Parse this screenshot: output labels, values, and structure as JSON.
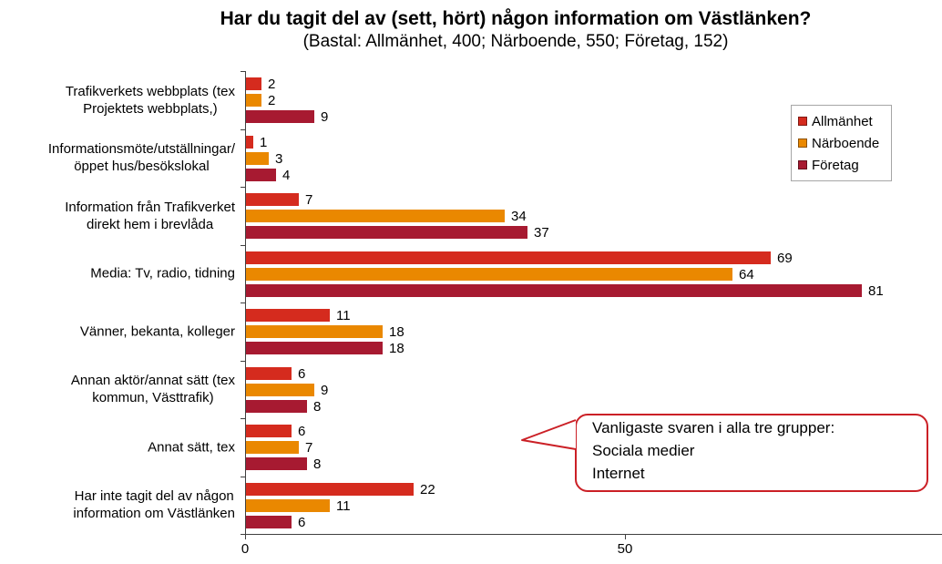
{
  "chart_data": {
    "type": "bar",
    "orientation": "horizontal",
    "title": "Har du tagit del av (sett, hört) någon information om Västlänken?",
    "subtitle": "(Bastal: Allmänhet, 400; Närboende, 550; Företag, 152)",
    "categories": [
      [
        "Trafikverkets webbplats (tex",
        "Projektets webbplats,)"
      ],
      [
        "Informationsmöte/utställningar/",
        "öppet hus/besökslokal"
      ],
      [
        "Information från Trafikverket",
        "direkt hem i brevlåda"
      ],
      [
        "Media: Tv, radio, tidning"
      ],
      [
        "Vänner, bekanta, kolleger"
      ],
      [
        "Annan aktör/annat sätt (tex",
        "kommun, Västtrafik)"
      ],
      [
        "Annat sätt, tex"
      ],
      [
        "Har inte tagit del av någon",
        "information om Västlänken"
      ]
    ],
    "series": [
      {
        "name": "Allmänhet",
        "color": "#D52B1E",
        "values": [
          2,
          1,
          7,
          69,
          11,
          6,
          6,
          22
        ]
      },
      {
        "name": "Närboende",
        "color": "#EA8800",
        "values": [
          2,
          3,
          34,
          64,
          18,
          9,
          7,
          11
        ]
      },
      {
        "name": "Företag",
        "color": "#A71A31",
        "values": [
          9,
          4,
          37,
          81,
          18,
          8,
          8,
          6
        ]
      }
    ],
    "xlim": [
      0,
      91.7
    ],
    "x_ticks": [
      0,
      50
    ],
    "grid": false,
    "legend_position": "top-right",
    "axis_color": "#404040"
  },
  "annotation": {
    "lines": [
      "Vanligaste svaren i alla tre grupper:",
      "Sociala medier",
      "Internet"
    ],
    "border_color": "#CB2026"
  }
}
